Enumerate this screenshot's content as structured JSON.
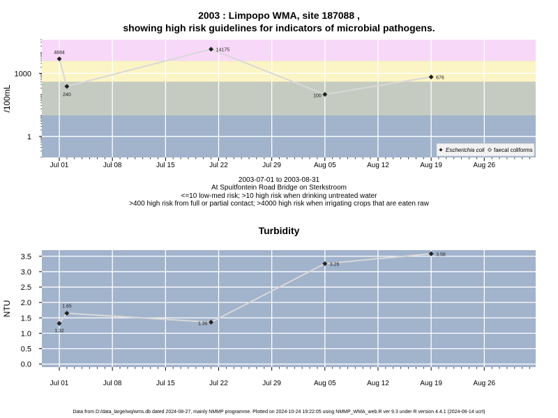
{
  "header": {
    "title_line1": "2003 : Limpopo WMA, site 187088 ,",
    "title_line2": "showing high risk guidelines for indicators of microbial pathogens."
  },
  "caption": {
    "line1": "2003-07-01 to 2003-08-31",
    "line2": "At Spuitfontein Road Bridge on Sterkstroom",
    "line3": "<=10 low-med risk; >10 high risk when drinking untreated water",
    "line4": ">400 high risk from full or partial contact; >4000 high risk when irrigating crops that are eaten raw"
  },
  "footer": {
    "text": "Data from D:/data_large/wq/wms.db dated 2024-08-27, mainly NMMP programme. Plotted on 2024-10-24 19:22:05 using NMMP_WMA_web.R ver 9.3 under R version 4.4.1 (2024-06-14 ucrt)"
  },
  "colors": {
    "panel_bg": "#a2b3cc",
    "band_low": "#c5cbc0",
    "band_mid": "#fbf4c4",
    "band_high": "#f8d8f8",
    "grid": "#ffffff",
    "line": "#d8d8d8",
    "point": "#222222"
  },
  "chart_data": [
    {
      "type": "line",
      "title": "",
      "xlabel": "",
      "ylabel": "/100mL",
      "yscale": "log",
      "ylim": [
        0.1,
        40000
      ],
      "x_ticks": [
        "Jul 01",
        "Jul 08",
        "Jul 15",
        "Jul 22",
        "Jul 29",
        "Aug 05",
        "Aug 12",
        "Aug 19",
        "Aug 26"
      ],
      "y_ticks": [
        {
          "value": 1,
          "label": "1"
        },
        {
          "value": 1000,
          "label": "1000"
        }
      ],
      "risk_bands": [
        {
          "from": 0.1,
          "to": 10,
          "color": "#a2b3cc"
        },
        {
          "from": 10,
          "to": 400,
          "color": "#c5cbc0"
        },
        {
          "from": 400,
          "to": 4000,
          "color": "#fbf4c4"
        },
        {
          "from": 4000,
          "to": 40000,
          "color": "#f8d8f8"
        }
      ],
      "legend": {
        "placement": "bottom-right",
        "entries": [
          "Escherichia coli",
          "faecal coliforms"
        ]
      },
      "series": [
        {
          "name": "Escherichia coli",
          "points": [
            {
              "date": "2003-07-01",
              "value": 4884,
              "label": "4884"
            },
            {
              "date": "2003-07-02",
              "value": 240,
              "label": "240"
            },
            {
              "date": "2003-07-21",
              "value": 14175,
              "label": "14175"
            },
            {
              "date": "2003-08-05",
              "value": 100,
              "label": "100"
            },
            {
              "date": "2003-08-19",
              "value": 676,
              "label": "676"
            }
          ]
        }
      ]
    },
    {
      "type": "line",
      "title": "Turbidity",
      "xlabel": "",
      "ylabel": "NTU",
      "ylim": [
        -0.1,
        3.7
      ],
      "x_ticks": [
        "Jul 01",
        "Jul 08",
        "Jul 15",
        "Jul 22",
        "Jul 29",
        "Aug 05",
        "Aug 12",
        "Aug 19",
        "Aug 26"
      ],
      "y_ticks": [
        {
          "value": 0,
          "label": "0.0"
        },
        {
          "value": 0.5,
          "label": "0.5"
        },
        {
          "value": 1,
          "label": "1.0"
        },
        {
          "value": 1.5,
          "label": "1.5"
        },
        {
          "value": 2,
          "label": "2.0"
        },
        {
          "value": 2.5,
          "label": "2.5"
        },
        {
          "value": 3,
          "label": "3.0"
        },
        {
          "value": 3.5,
          "label": "3.5"
        }
      ],
      "series": [
        {
          "name": "",
          "points": [
            {
              "date": "2003-07-01",
              "value": 1.32,
              "label": "1.32"
            },
            {
              "date": "2003-07-02",
              "value": 1.65,
              "label": "1.65"
            },
            {
              "date": "2003-07-21",
              "value": 1.36,
              "label": "1.36"
            },
            {
              "date": "2003-08-05",
              "value": 3.26,
              "label": "3.26"
            },
            {
              "date": "2003-08-19",
              "value": 3.58,
              "label": "3.58"
            }
          ]
        }
      ]
    }
  ]
}
